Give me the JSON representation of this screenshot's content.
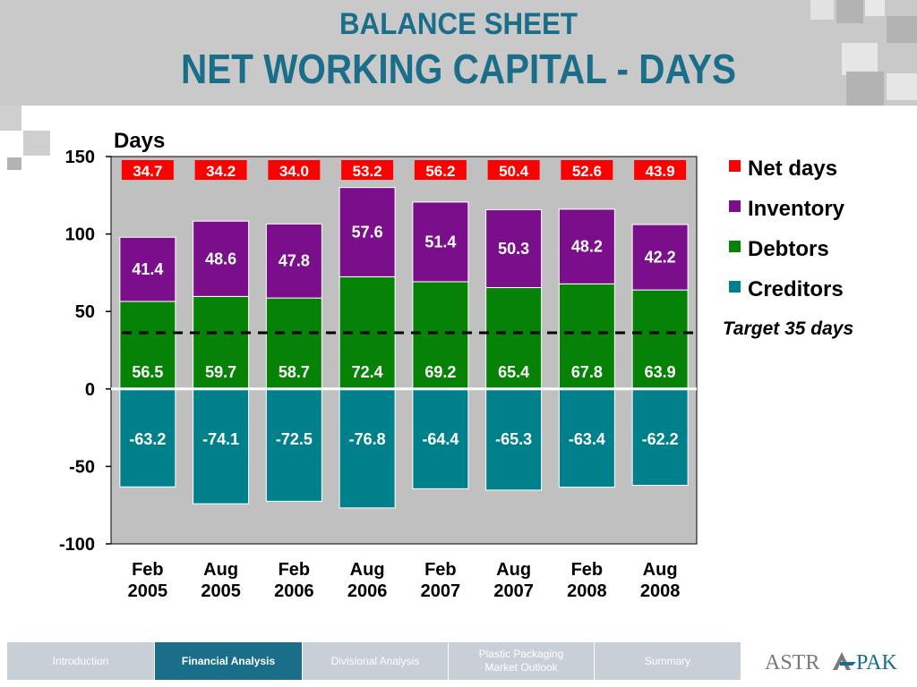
{
  "slide": {
    "title_line1": "BALANCE  SHEET",
    "title_line2": "NET WORKING CAPITAL - DAYS",
    "logo_text": "ASTRAPAK"
  },
  "nav": {
    "items": [
      {
        "label": "Introduction",
        "active": false
      },
      {
        "label": "Financial Analysis",
        "active": true
      },
      {
        "label": "Divisional Analysis",
        "active": false
      },
      {
        "label": "Plastic Packaging Market Outlook",
        "active": false
      },
      {
        "label": "Summary",
        "active": false
      }
    ]
  },
  "colors": {
    "net_days": "#ff0000",
    "inventory": "#7b0e8a",
    "debtors": "#068206",
    "creditors": "#00808a",
    "plot_bg": "#c0c0c0",
    "title": "#1a6e8a"
  },
  "chart_data": {
    "type": "bar",
    "stacked": true,
    "ylabel": "Days",
    "ylim": [
      -100,
      150
    ],
    "yticks": [
      150,
      100,
      50,
      0,
      -50,
      -100
    ],
    "categories": [
      "Feb 2005",
      "Aug 2005",
      "Feb 2006",
      "Aug 2006",
      "Feb 2007",
      "Aug 2007",
      "Feb 2008",
      "Aug 2008"
    ],
    "series": [
      {
        "name": "Debtors",
        "values": [
          56.5,
          59.7,
          58.7,
          72.4,
          69.2,
          65.4,
          67.8,
          63.9
        ]
      },
      {
        "name": "Inventory",
        "values": [
          41.4,
          48.6,
          47.8,
          57.6,
          51.4,
          50.3,
          48.2,
          42.2
        ]
      },
      {
        "name": "Creditors",
        "values": [
          -63.2,
          -74.1,
          -72.5,
          -76.8,
          -64.4,
          -65.3,
          -63.4,
          -62.2
        ]
      }
    ],
    "net_days": {
      "name": "Net days",
      "values": [
        "34.7",
        "34.2",
        "34.0",
        "53.2",
        "56.2",
        "50.4",
        "52.6",
        "43.9"
      ]
    },
    "target": {
      "label": "Target 35 days",
      "value": 35
    },
    "legend": [
      "Net days",
      "Inventory",
      "Debtors",
      "Creditors"
    ],
    "legend_position": "right",
    "grid": false
  }
}
